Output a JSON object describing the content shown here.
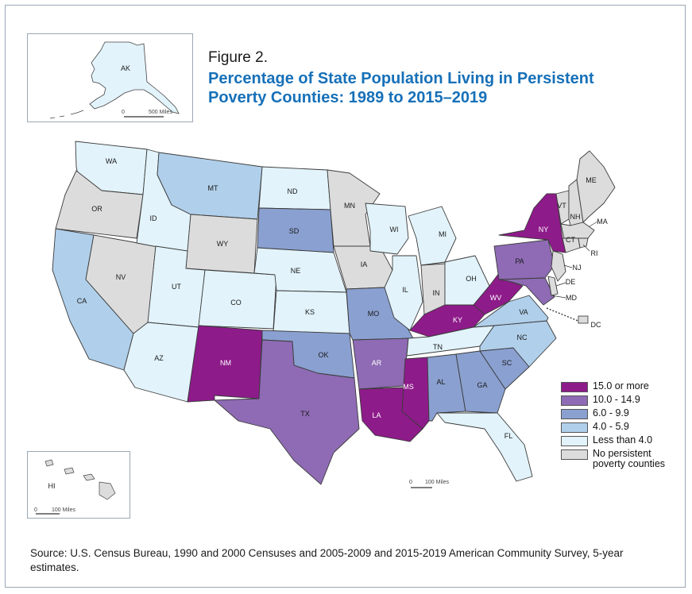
{
  "figure_label": "Figure 2.",
  "title": "Percentage of State Population Living in Persistent Poverty Counties: 1989 to 2015–2019",
  "source": "Source: U.S. Census Bureau, 1990 and 2000 Censuses and 2005-2009 and 2015-2019 American Community Survey, 5-year estimates.",
  "colors": {
    "c5": "#8e1b8a",
    "c4": "#8e6bb4",
    "c3": "#8aa0d0",
    "c2": "#b0cfea",
    "c1": "#e2f3fb",
    "c0": "#dcdcdc"
  },
  "legend": [
    {
      "label": "15.0 or more",
      "color": "#8e1b8a"
    },
    {
      "label": "10.0 - 14.9",
      "color": "#8e6bb4"
    },
    {
      "label": "6.0 - 9.9",
      "color": "#8aa0d0"
    },
    {
      "label": "4.0 - 5.9",
      "color": "#b0cfea"
    },
    {
      "label": "Less than 4.0",
      "color": "#e2f3fb"
    },
    {
      "label": "No persistent poverty counties",
      "color": "#dcdcdc"
    }
  ],
  "scales": {
    "alaska": {
      "zero": "0",
      "label": "500 Miles"
    },
    "hawaii": {
      "zero": "0",
      "label": "100 Miles"
    },
    "mainland": {
      "zero": "0",
      "label": "100 Miles"
    }
  },
  "states": {
    "AK": "AK",
    "HI": "HI",
    "WA": "WA",
    "OR": "OR",
    "CA": "CA",
    "NV": "NV",
    "ID": "ID",
    "MT": "MT",
    "WY": "WY",
    "UT": "UT",
    "AZ": "AZ",
    "CO": "CO",
    "NM": "NM",
    "ND": "ND",
    "SD": "SD",
    "NE": "NE",
    "KS": "KS",
    "OK": "OK",
    "TX": "TX",
    "MN": "MN",
    "IA": "IA",
    "MO": "MO",
    "AR": "AR",
    "LA": "LA",
    "WI": "WI",
    "IL": "IL",
    "MI": "MI",
    "IN": "IN",
    "OH": "OH",
    "KY": "KY",
    "TN": "TN",
    "MS": "MS",
    "AL": "AL",
    "GA": "GA",
    "FL": "FL",
    "SC": "SC",
    "NC": "NC",
    "VA": "VA",
    "WV": "WV",
    "PA": "PA",
    "NY": "NY",
    "VT": "VT",
    "NH": "NH",
    "ME": "ME",
    "MA": "MA",
    "CT": "CT",
    "RI": "RI",
    "NJ": "NJ",
    "DE": "DE",
    "MD": "MD",
    "DC": "DC"
  }
}
